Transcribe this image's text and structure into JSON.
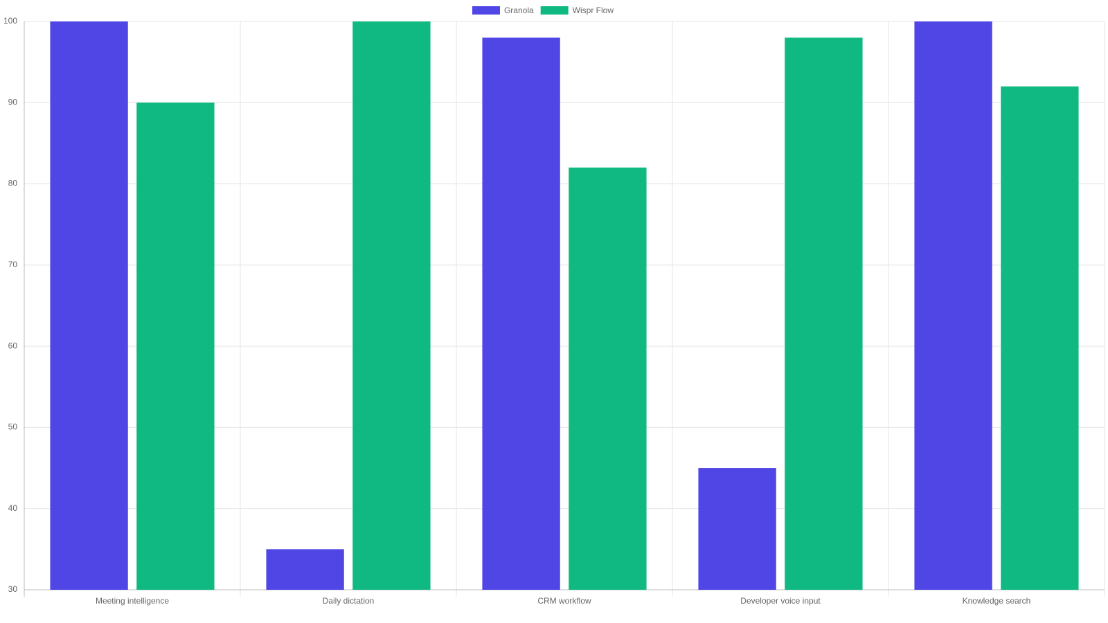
{
  "chart_data": {
    "type": "bar",
    "categories": [
      "Meeting intelligence",
      "Daily dictation",
      "CRM workflow",
      "Developer voice input",
      "Knowledge search"
    ],
    "series": [
      {
        "name": "Granola",
        "color": "#4f46e5",
        "values": [
          100,
          35,
          98,
          45,
          100
        ]
      },
      {
        "name": "Wispr Flow",
        "color": "#10b981",
        "values": [
          90,
          100,
          82,
          98,
          92
        ]
      }
    ],
    "ylim": [
      30,
      100
    ],
    "yticks": [
      30,
      40,
      50,
      60,
      70,
      80,
      90,
      100
    ],
    "grid": true,
    "legend": "top"
  }
}
